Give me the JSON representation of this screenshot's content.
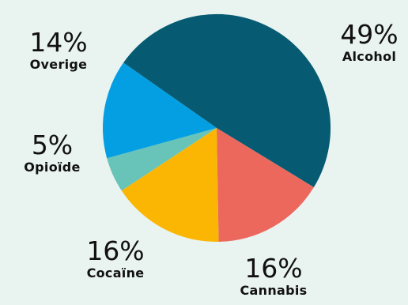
{
  "chart_data": {
    "type": "pie",
    "slices": [
      {
        "label": "Alcohol",
        "value": 49,
        "display": "49%",
        "color": "#065b73"
      },
      {
        "label": "Cannabis",
        "value": 16,
        "display": "16%",
        "color": "#ec685d"
      },
      {
        "label": "Cocaïne",
        "value": 16,
        "display": "16%",
        "color": "#fbb603"
      },
      {
        "label": "Opioïde",
        "value": 5,
        "display": "5%",
        "color": "#68c4b8"
      },
      {
        "label": "Overige",
        "value": 14,
        "display": "14%",
        "color": "#049fe3"
      }
    ]
  }
}
